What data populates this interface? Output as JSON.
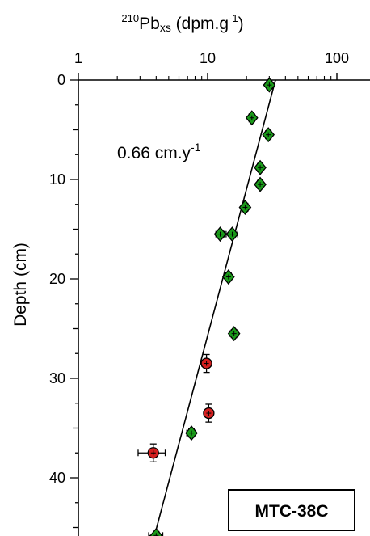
{
  "chart_data": {
    "type": "scatter",
    "x_axis": {
      "label_iso": "210",
      "label_main": "Pb",
      "label_sub": "xs",
      "label_unit": " (dpm.g",
      "label_unit_exp": "-1",
      "label_unit_close": ")",
      "scale": "log",
      "range": [
        1,
        200
      ],
      "ticks": [
        "1",
        "10",
        "100"
      ],
      "position": "top"
    },
    "y_axis": {
      "label": "Depth (cm)",
      "range": [
        0,
        46
      ],
      "inverted": true,
      "ticks": [
        "0",
        "10",
        "20",
        "30",
        "40"
      ]
    },
    "series": [
      {
        "marker": "diamond",
        "color": "#1a9a1a",
        "points": [
          {
            "x": 30.0,
            "y": 0.5,
            "xerr": 1.5,
            "yerr": 0.4
          },
          {
            "x": 22.0,
            "y": 3.8,
            "xerr": 1.2,
            "yerr": 0.4
          },
          {
            "x": 29.5,
            "y": 5.5,
            "xerr": 1.5,
            "yerr": 0.4
          },
          {
            "x": 25.5,
            "y": 8.8,
            "xerr": 1.4,
            "yerr": 0.4
          },
          {
            "x": 25.5,
            "y": 10.5,
            "xerr": 1.4,
            "yerr": 0.4
          },
          {
            "x": 19.5,
            "y": 12.8,
            "xerr": 1.1,
            "yerr": 0.4
          },
          {
            "x": 12.5,
            "y": 15.5,
            "xerr": 0.9,
            "yerr": 0.4
          },
          {
            "x": 15.5,
            "y": 15.5,
            "xerr": 1.6,
            "yerr": 0.4
          },
          {
            "x": 14.5,
            "y": 19.8,
            "xerr": 0.8,
            "yerr": 0.4
          },
          {
            "x": 16.0,
            "y": 25.5,
            "xerr": 1.2,
            "yerr": 0.4
          },
          {
            "x": 7.5,
            "y": 35.5,
            "xerr": 0.6,
            "yerr": 0.4
          },
          {
            "x": 4.0,
            "y": 45.8,
            "xerr": 0.5,
            "yerr": 0.4
          }
        ]
      },
      {
        "marker": "circle",
        "color": "#d42020",
        "points": [
          {
            "x": 9.8,
            "y": 28.5,
            "xerr": 0.8,
            "yerr": 0.9
          },
          {
            "x": 10.2,
            "y": 33.5,
            "xerr": 0.8,
            "yerr": 0.9
          },
          {
            "x": 3.8,
            "y": 37.5,
            "xerr": 0.9,
            "yerr": 0.9
          }
        ]
      }
    ],
    "fit_line": {
      "x1": 33.5,
      "y1": 0.0,
      "x2": 3.85,
      "y2": 46.0
    },
    "annotations": {
      "rate_main": "0.66 cm.y",
      "rate_exp": "-1"
    },
    "core_label": "MTC-38C",
    "grid": false
  }
}
